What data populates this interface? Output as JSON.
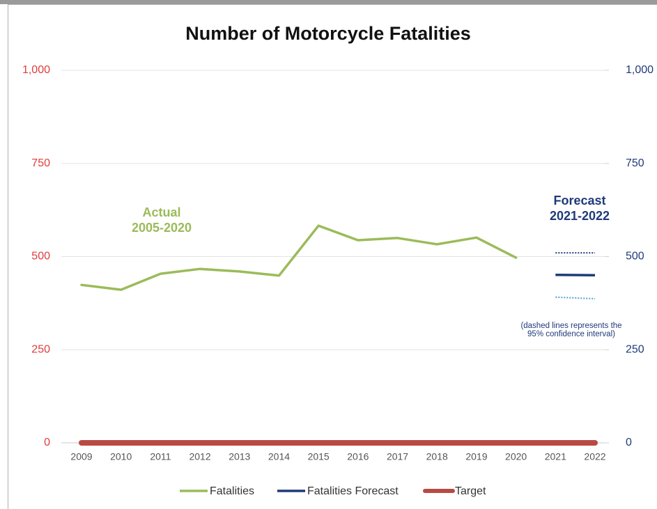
{
  "chart_data": {
    "type": "line",
    "title": "Number of Motorcycle Fatalities",
    "categories": [
      "2009",
      "2010",
      "2011",
      "2012",
      "2013",
      "2014",
      "2015",
      "2016",
      "2017",
      "2018",
      "2019",
      "2020",
      "2021",
      "2022"
    ],
    "series": [
      {
        "name": "Fatalities",
        "color": "#9bbb59",
        "values": [
          424,
          411,
          454,
          467,
          460,
          449,
          583,
          544,
          550,
          533,
          551,
          497,
          null,
          null
        ]
      },
      {
        "name": "Fatalities Forecast",
        "color": "#1f3a7a",
        "values": [
          null,
          null,
          null,
          null,
          null,
          null,
          null,
          null,
          null,
          null,
          null,
          null,
          451,
          450
        ]
      },
      {
        "name": "Target",
        "color": "#b84a44",
        "values": [
          0,
          0,
          0,
          0,
          0,
          0,
          0,
          0,
          0,
          0,
          0,
          0,
          0,
          0
        ]
      }
    ],
    "confidence_interval": {
      "upper": {
        "color": "#1f3a7a",
        "values": [
          null,
          null,
          null,
          null,
          null,
          null,
          null,
          null,
          null,
          null,
          null,
          null,
          510,
          510
        ]
      },
      "lower": {
        "color": "#4ba3d3",
        "values": [
          null,
          null,
          null,
          null,
          null,
          null,
          null,
          null,
          null,
          null,
          null,
          null,
          391,
          387
        ]
      }
    },
    "ylim": [
      0,
      1000
    ],
    "yticks": [
      0,
      250,
      500,
      750,
      {
        "value": 1000,
        "label": "1,000"
      }
    ],
    "y2lim": [
      0,
      1000
    ],
    "y2ticks": [
      0,
      250,
      500,
      750,
      {
        "value": 1000,
        "label": "1,000"
      }
    ],
    "ytick_color": "#e03c3c",
    "y2tick_color": "#1f3a7a",
    "grid": true,
    "legend": "bottom",
    "annotations": [
      {
        "lines": [
          "Actual",
          "2005-2020"
        ],
        "color": "#9bbb59"
      },
      {
        "lines": [
          "Forecast",
          "2021-2022"
        ],
        "color": "#1f3a7a"
      },
      {
        "lines": [
          "(dashed lines represents the",
          "95% confidence interval)"
        ],
        "color": "#1f3a7a"
      }
    ]
  }
}
